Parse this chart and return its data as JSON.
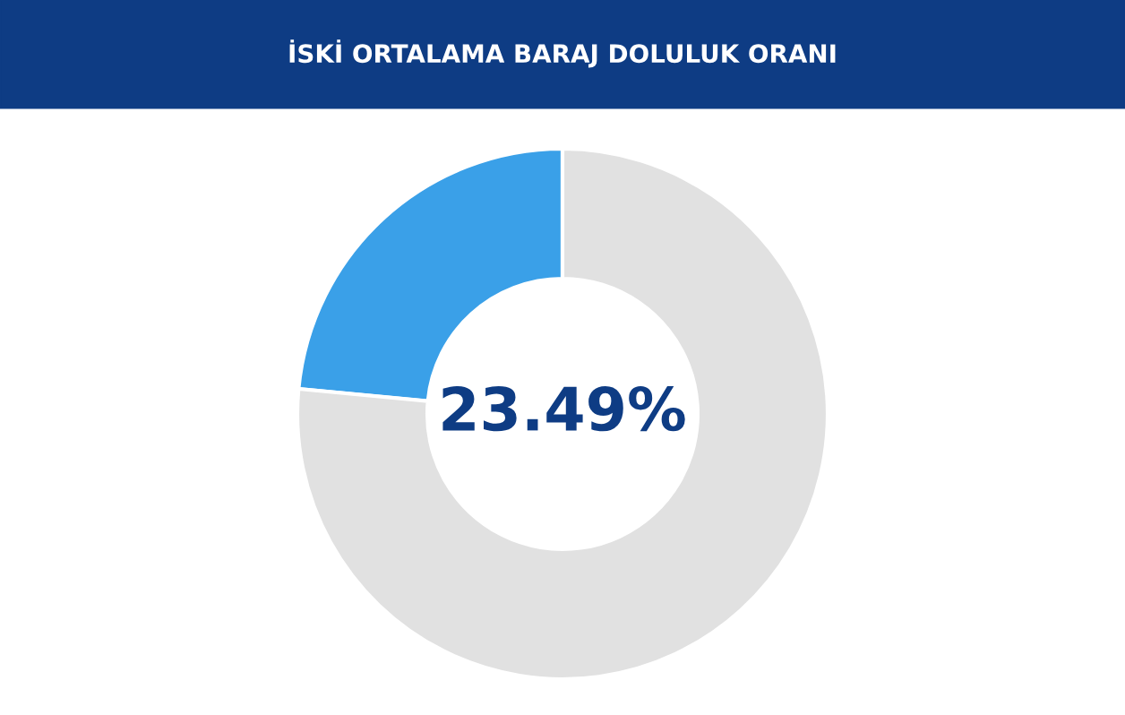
{
  "chart_data": {
    "type": "donut",
    "title": "İSKİ ORTALAMA BARAJ DOLULUK ORANI",
    "categories": [
      null,
      null
    ],
    "values": [
      23.49,
      76.51
    ],
    "colors": [
      "#3aa0e8",
      "#e1e1e1"
    ],
    "annotations": [
      "23.49%"
    ]
  }
}
